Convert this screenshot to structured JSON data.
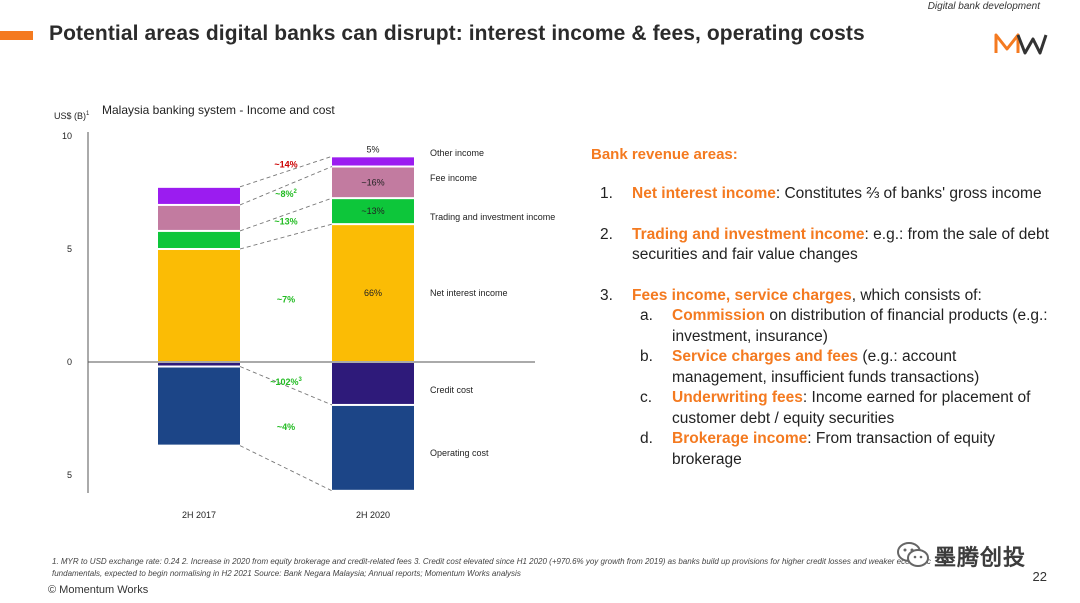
{
  "header": {
    "tag": "Digital bank development",
    "title": "Potential areas digital banks can disrupt: interest income & fees, operating costs"
  },
  "chart_data": {
    "type": "bar",
    "stacked": true,
    "title": "Malaysia banking system - Income and cost",
    "ylabel": "US$ (B)",
    "ylabel_sup": "1",
    "categories": [
      "2H 2017",
      "2H 2020"
    ],
    "ylim": [
      -5,
      10
    ],
    "yticks": [
      {
        "value": 10,
        "label": "10"
      },
      {
        "value": 5,
        "label": "5"
      },
      {
        "value": 0,
        "label": "0"
      },
      {
        "value": -5,
        "label": "5"
      }
    ],
    "income_series": [
      {
        "name": "Net interest income",
        "values": [
          5.0,
          6.1
        ],
        "color": "#fbbc05"
      },
      {
        "name": "Trading and investment income",
        "values": [
          0.8,
          1.15
        ],
        "color": "#0dc63a"
      },
      {
        "name": "Fee income",
        "values": [
          1.15,
          1.4
        ],
        "color": "#c27ba0"
      },
      {
        "name": "Other income",
        "values": [
          0.8,
          0.45
        ],
        "color": "#9b1cf0"
      }
    ],
    "cost_series": [
      {
        "name": "Credit cost",
        "values": [
          0.2,
          1.9
        ],
        "color": "#2e1a7a"
      },
      {
        "name": "Operating cost",
        "values": [
          3.5,
          3.8
        ],
        "color": "#1c4587"
      }
    ],
    "growth_labels": [
      {
        "series": "Other income",
        "text": "~14%",
        "color": "#cc0000"
      },
      {
        "series": "Fee income",
        "text": "~8%",
        "sup": "2",
        "color": "#22bb22"
      },
      {
        "series": "Trading and investment income",
        "text": "~13%",
        "color": "#22bb22"
      },
      {
        "series": "Net interest income",
        "text": "~7%",
        "color": "#22bb22"
      },
      {
        "series": "Credit cost",
        "text": "~102%",
        "sup": "3",
        "color": "#22bb22"
      },
      {
        "series": "Operating cost",
        "text": "~4%",
        "color": "#22bb22"
      }
    ],
    "share_labels_2020": [
      {
        "series": "Other income",
        "text": "5%"
      },
      {
        "series": "Fee income",
        "text": "~16%"
      },
      {
        "series": "Trading and investment income",
        "text": "~13%"
      },
      {
        "series": "Net interest income",
        "text": "66%"
      }
    ],
    "grid": false
  },
  "panel": {
    "title": "Bank revenue areas:",
    "items": [
      {
        "num": "1.",
        "highlight": "Net interest income",
        "text": ": Constitutes ⅔ of banks' gross income"
      },
      {
        "num": "2.",
        "highlight": "Trading and investment income",
        "text": ": e.g.: from the sale of debt securities and fair value changes"
      },
      {
        "num": "3.",
        "highlight": "Fees income, service charges",
        "text": ", which consists of:"
      }
    ],
    "sub_items": [
      {
        "letter": "a.",
        "highlight": "Commission",
        "text": " on distribution of financial products (e.g.: investment, insurance)"
      },
      {
        "letter": "b.",
        "highlight": "Service charges and fees",
        "text": " (e.g.: account management, insufficient funds transactions)"
      },
      {
        "letter": "c.",
        "highlight": "Underwriting fees",
        "text": ": Income earned for placement of customer debt / equity securities"
      },
      {
        "letter": "d.",
        "highlight": "Brokerage income",
        "text": ": From transaction of equity brokerage"
      }
    ]
  },
  "footer": {
    "footnote": "1.  MYR to USD exchange rate: 0.24    2.  Increase in 2020 from equity brokerage and credit-related fees    3.  Credit cost elevated since H1 2020 (+970.6% yoy growth from 2019) as banks build up provisions for higher credit losses and weaker economic fundamentals, expected to begin normalising in H2 2021    Source: Bank Negara Malaysia; Annual reports; Momentum Works analysis",
    "copyright": "© Momentum Works",
    "page": "22",
    "watermark": "墨腾创投"
  },
  "colors": {
    "accent": "#f47a20"
  }
}
